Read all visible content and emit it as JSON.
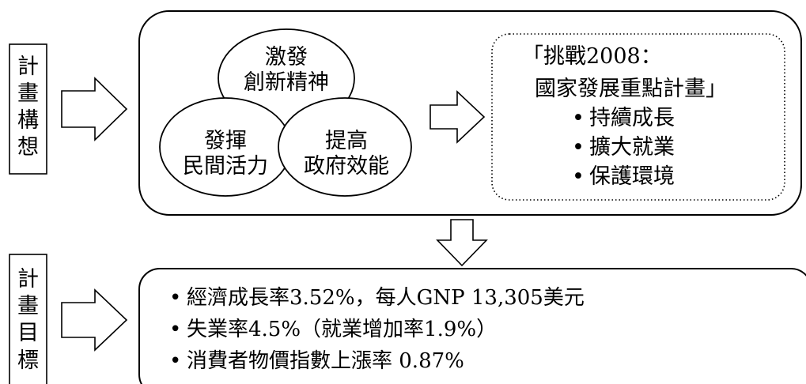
{
  "plan_concept_label": [
    "計",
    "畫",
    "構",
    "想"
  ],
  "plan_goal_label": [
    "計",
    "畫",
    "目",
    "標"
  ],
  "circles": {
    "innovation": [
      "激發",
      "創新精神"
    ],
    "private_vitality": [
      "發揮",
      "民間活力"
    ],
    "government_efficiency": [
      "提高",
      "政府效能"
    ]
  },
  "challenge": {
    "title_line1": "「挑戰2008：",
    "title_line2": "國家發展重點計畫」",
    "bullets": [
      "持續成長",
      "擴大就業",
      "保護環境"
    ]
  },
  "goals": [
    "經濟成長率3.52%，每人GNP 13,305美元",
    "失業率4.5%（就業增加率1.9%）",
    "消費者物價指數上漲率 0.87%"
  ],
  "bullet_symbol": "•"
}
